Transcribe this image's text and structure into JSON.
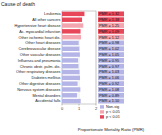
{
  "chart_data": {
    "type": "bar",
    "orientation": "horizontal",
    "title": "Cause of death",
    "xlabel": "Proportionate Mortality Ratio (PMR)",
    "categories": [
      "Leukemia",
      "All other cancers",
      "Hypertensive heart disease",
      "Ac. myocardial infarction",
      "Other ischemic heart dis.",
      "Other heart diseases",
      "Cerebrovascular disease",
      "Other vascular diseases",
      "Influenza and pneumonia",
      "Chronic obstr. pulm. dis.",
      "Other respiratory diseases",
      "Diabetes mellitus",
      "Other digestive diseases",
      "Nervous system diseases",
      "Mental disorders",
      "Accidental falls"
    ],
    "xlim": [
      0,
      2
    ],
    "xticks": [
      0,
      1,
      2
    ],
    "grid": true,
    "legend": "bottom-right",
    "data_labels": true,
    "series": [
      {
        "name": "Non-sig",
        "color": "#b4b4e6",
        "values": [
          null,
          null,
          null,
          null,
          null,
          0.98,
          1.02,
          1.05,
          0.95,
          0.97,
          1.03,
          1.06,
          0.92,
          1.08,
          0.89,
          1.1
        ],
        "value_labels": [
          null,
          null,
          null,
          null,
          null,
          "PMR = 0.98",
          "PMR = 1.02",
          "PMR = 1.05",
          "PMR = 0.95",
          "PMR = 0.97",
          "PMR = 1.03",
          "PMR = 1.06",
          "PMR = 0.92",
          "PMR = 1.08",
          "PMR = 0.89",
          "PMR = 1.10"
        ]
      },
      {
        "name": "p < 0.05",
        "color": "#f4a6b0",
        "values": [
          null,
          null,
          1.25,
          null,
          1.12,
          null,
          null,
          null,
          null,
          null,
          null,
          null,
          null,
          null,
          null,
          null
        ],
        "value_labels": [
          null,
          null,
          "PMR = 1.25",
          null,
          "PMR = 1.12",
          null,
          null,
          null,
          null,
          null,
          null,
          null,
          null,
          null,
          null,
          null
        ]
      },
      {
        "name": "p < 0.01",
        "color": "#e8475a",
        "values": [
          1.32,
          1.18,
          null,
          1.09,
          null,
          null,
          null,
          null,
          null,
          null,
          null,
          null,
          null,
          null,
          null,
          null
        ],
        "value_labels": [
          "PMR = 1.32",
          "PMR = 1.18",
          null,
          "PMR = 1.09",
          null,
          null,
          null,
          null,
          null,
          null,
          null,
          null,
          null,
          null,
          null,
          null
        ]
      }
    ]
  }
}
